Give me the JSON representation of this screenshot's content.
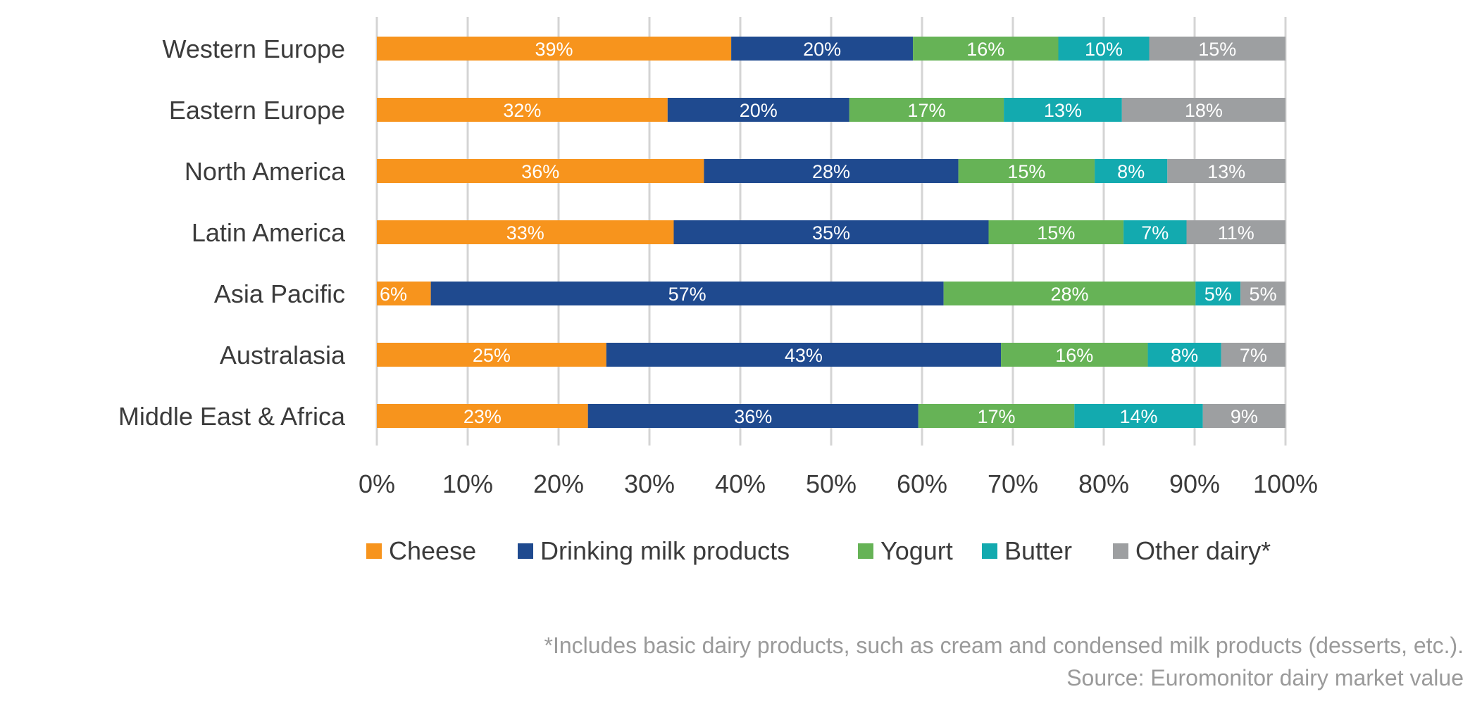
{
  "chart_data": {
    "type": "bar",
    "orientation": "horizontal",
    "stacked": true,
    "categories": [
      "Western Europe",
      "Eastern Europe",
      "North America",
      "Latin America",
      "Asia Pacific",
      "Australasia",
      "Middle East & Africa"
    ],
    "series": [
      {
        "name": "Cheese",
        "color": "#F7941D",
        "values": [
          39,
          32,
          36,
          33,
          6,
          25,
          23
        ]
      },
      {
        "name": "Drinking milk products",
        "color": "#1F4A8F",
        "values": [
          20,
          20,
          28,
          35,
          57,
          43,
          36
        ]
      },
      {
        "name": "Yogurt",
        "color": "#66B356",
        "values": [
          16,
          17,
          15,
          15,
          28,
          16,
          17
        ]
      },
      {
        "name": "Butter",
        "color": "#13AAAF",
        "values": [
          10,
          13,
          8,
          7,
          5,
          8,
          14
        ]
      },
      {
        "name": "Other dairy*",
        "color": "#9D9FA1",
        "values": [
          15,
          18,
          13,
          11,
          5,
          7,
          9
        ]
      }
    ],
    "xlim": [
      0,
      100
    ],
    "xticks": [
      "0%",
      "10%",
      "20%",
      "30%",
      "40%",
      "50%",
      "60%",
      "70%",
      "80%",
      "90%",
      "100%"
    ],
    "value_suffix": "%",
    "grid": "vertical",
    "legend_position": "bottom",
    "title": "",
    "xlabel": "",
    "ylabel": ""
  },
  "footnotes": {
    "note": "*Includes basic dairy products, such as cream and condensed milk products (desserts, etc.).",
    "source": "Source: Euromonitor dairy market value"
  }
}
